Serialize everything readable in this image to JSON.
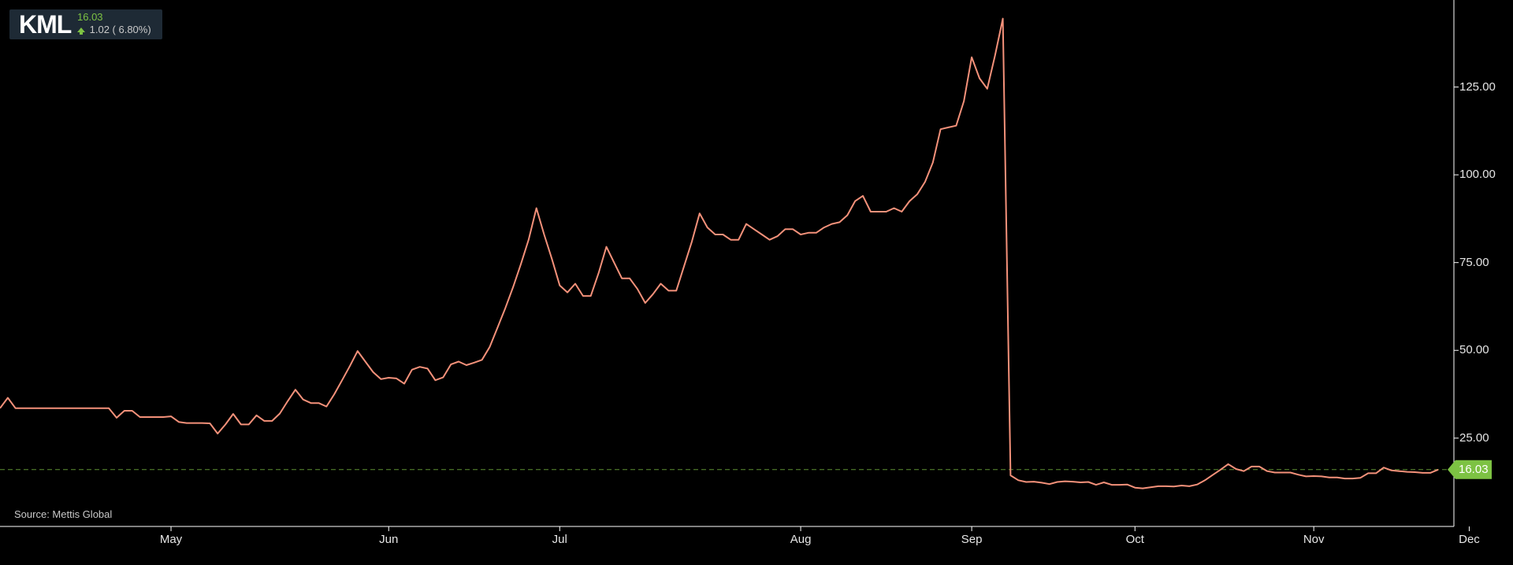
{
  "header": {
    "symbol": "KML",
    "price": "16.03",
    "change": "1.02 ( 6.80%)"
  },
  "source": "Source: Mettis Global",
  "last_price_tag": "16.03",
  "colors": {
    "background": "#000000",
    "line": "#f4917a",
    "up": "#7dc243",
    "axis": "#ffffff",
    "ticker_box": "#1e2a35"
  },
  "icons": {
    "change_direction": "up-arrow-icon"
  },
  "chart_data": {
    "type": "line",
    "title": "",
    "xlabel": "",
    "ylabel": "",
    "ylim": [
      5,
      148
    ],
    "yticks": [
      25,
      50,
      75,
      100,
      125
    ],
    "ytick_labels": [
      "25.00",
      "50.00",
      "75.00",
      "100.00",
      "125.00"
    ],
    "xtick_labels": [
      "May",
      "Jun",
      "Jul",
      "Aug",
      "Sep",
      "Oct",
      "Nov",
      "Dec"
    ],
    "last_value": 16.03,
    "series": [
      {
        "values": [
          33.5,
          36.5,
          33.5,
          33.5,
          33.5,
          33.5,
          33.5,
          33.5,
          33.5,
          33.5,
          33.5,
          33.5,
          33.5,
          33.5,
          33.5,
          30.8,
          32.8,
          32.8,
          31.0,
          31.0,
          31.0,
          31.0,
          31.2,
          29.6,
          29.3,
          29.3,
          29.3,
          29.2,
          26.3,
          28.9,
          31.9,
          28.9,
          28.9,
          31.5,
          29.9,
          29.9,
          32.0,
          35.5,
          38.8,
          36.0,
          35.0,
          35.0,
          34.0,
          37.5,
          41.5,
          45.5,
          49.8,
          46.8,
          43.8,
          41.8,
          42.2,
          42.0,
          40.5,
          44.5,
          45.3,
          44.8,
          41.5,
          42.3,
          46.0,
          46.8,
          45.8,
          46.5,
          47.3,
          51.0,
          56.5,
          62.0,
          68.0,
          74.5,
          81.5,
          90.5,
          83.0,
          76.0,
          68.5,
          66.5,
          69.0,
          65.5,
          65.5,
          72.0,
          79.5,
          75.0,
          70.5,
          70.5,
          67.5,
          63.5,
          66.0,
          69.0,
          67.0,
          67.0,
          74.0,
          81.0,
          89.0,
          85.0,
          83.0,
          83.0,
          81.5,
          81.5,
          86.0,
          84.5,
          83.0,
          81.5,
          82.5,
          84.5,
          84.5,
          83.0,
          83.5,
          83.5,
          85.0,
          86.0,
          86.5,
          88.5,
          92.5,
          94.0,
          89.5,
          89.5,
          89.5,
          90.5,
          89.5,
          92.5,
          94.5,
          98.0,
          103.5,
          113.0,
          113.5,
          114.0,
          121.0,
          133.5,
          127.5,
          124.5,
          134.0,
          144.5,
          14.4,
          13.0,
          12.5,
          12.6,
          12.3,
          11.9,
          12.5,
          12.7,
          12.6,
          12.4,
          12.5,
          11.7,
          12.4,
          11.7,
          11.7,
          11.8,
          10.9,
          10.7,
          11.0,
          11.3,
          11.3,
          11.2,
          11.5,
          11.3,
          11.8,
          13.0,
          14.5,
          16.0,
          17.6,
          16.2,
          15.6,
          16.9,
          16.9,
          15.6,
          15.2,
          15.2,
          15.2,
          14.6,
          14.1,
          14.2,
          14.1,
          13.8,
          13.8,
          13.5,
          13.5,
          13.7,
          15.0,
          15.0,
          16.6,
          15.8,
          15.6,
          15.4,
          15.3,
          15.1,
          15.1,
          16.03
        ]
      }
    ]
  }
}
